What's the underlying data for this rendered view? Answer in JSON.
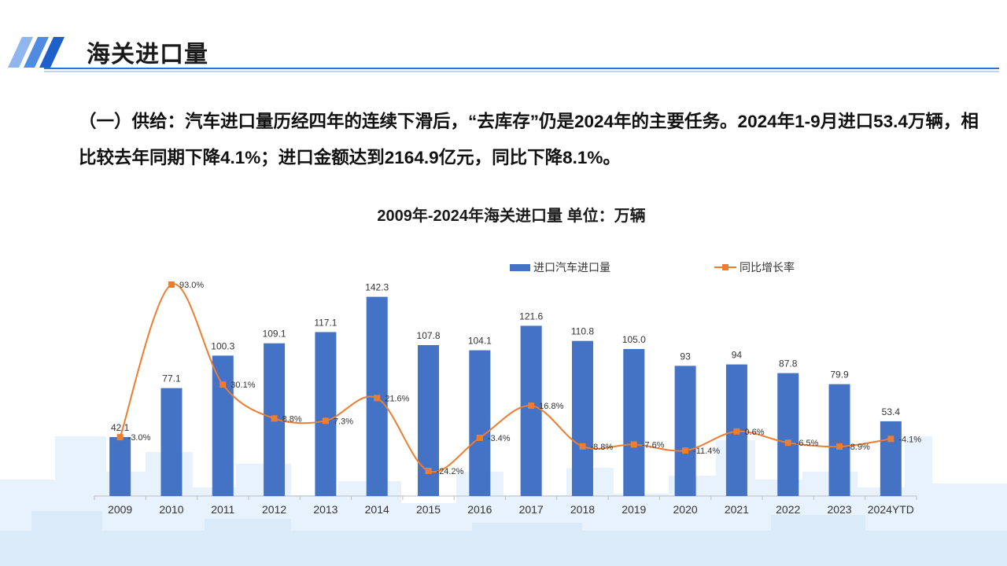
{
  "header": {
    "title": "海关进口量"
  },
  "summary_text": "（一）供给：汽车进口量历经四年的连续下滑后，“去库存”仍是2024年的主要任务。2024年1-9月进口53.4万辆，相比较去年同期下降4.1%；进口金额达到2164.9亿元，同比下降8.1%。",
  "colors": {
    "bar": "#4472c4",
    "line": "#ed7d31",
    "header_accent": "#2f6fd6",
    "city_background": "#e6f1fb"
  },
  "chart_data": {
    "type": "bar",
    "title": "2009年-2024年海关进口量  单位：万辆",
    "xlabel": "",
    "ylabel": "",
    "categories": [
      "2009",
      "2010",
      "2011",
      "2012",
      "2013",
      "2014",
      "2015",
      "2016",
      "2017",
      "2018",
      "2019",
      "2020",
      "2021",
      "2022",
      "2023",
      "2024YTD"
    ],
    "series": [
      {
        "name": "进口汽车进口量",
        "type": "bar",
        "axis": "left",
        "values": [
          42.1,
          77.1,
          100.3,
          109.1,
          117.1,
          142.3,
          107.8,
          104.1,
          121.6,
          110.8,
          105.0,
          93,
          94,
          87.8,
          79.9,
          53.4
        ],
        "labels": [
          "42.1",
          "77.1",
          "100.3",
          "109.1",
          "117.1",
          "142.3",
          "107.8",
          "104.1",
          "121.6",
          "110.8",
          "105.0",
          "93",
          "94",
          "87.8",
          "79.9",
          "53.4"
        ]
      },
      {
        "name": "同比增长率",
        "type": "line",
        "axis": "right",
        "values": [
          -3.0,
          93.0,
          30.1,
          8.8,
          7.3,
          21.6,
          -24.2,
          -3.4,
          16.8,
          -8.8,
          -7.6,
          -11.4,
          0.6,
          -6.5,
          -8.9,
          -4.1
        ],
        "labels": [
          "-3.0%",
          "93.0%",
          "30.1%",
          "8.8%",
          "7.3%",
          "21.6%",
          "-24.2%",
          "-3.4%",
          "16.8%",
          "-8.8%",
          "-7.6%",
          "-11.4%",
          "0.6%",
          "-6.5%",
          "-8.9%",
          "-4.1%"
        ]
      }
    ],
    "ylim_left": [
      0,
      160
    ],
    "ylim_right": [
      -40,
      100
    ],
    "grid": false,
    "legend": "top-right"
  }
}
